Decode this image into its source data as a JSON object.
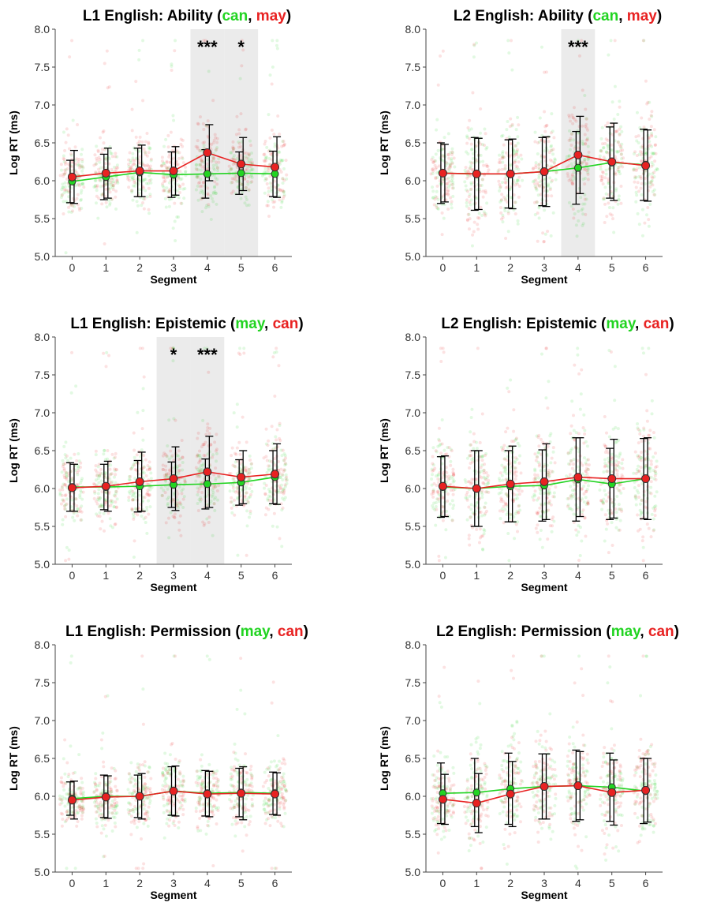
{
  "colors": {
    "green": "#22d422",
    "red": "#e82222",
    "shade": "#ebebeb"
  },
  "chart_data": [
    {
      "type": "line",
      "title_prefix": "L1 English: Ability (",
      "title_first": "can",
      "title_sep": ", ",
      "title_second": "may",
      "title_suffix": ")",
      "xlabel": "Segment",
      "ylabel": "Log RT (ms)",
      "ylim": [
        5.0,
        8.0
      ],
      "yticks": [
        "5.0",
        "5.5",
        "6.0",
        "6.5",
        "7.0",
        "7.5",
        "8.0"
      ],
      "categories": [
        "0",
        "1",
        "2",
        "3",
        "4",
        "5",
        "6"
      ],
      "highlight_segments": [
        4,
        5
      ],
      "significance": [
        {
          "segment": 4,
          "label": "***"
        },
        {
          "segment": 5,
          "label": "*"
        }
      ],
      "series": [
        {
          "name": "can",
          "color": "green",
          "values": [
            5.99,
            6.05,
            6.11,
            6.08,
            6.09,
            6.1,
            6.09
          ],
          "error": [
            0.28,
            0.3,
            0.32,
            0.3,
            0.32,
            0.28,
            0.3
          ]
        },
        {
          "name": "may",
          "color": "red",
          "values": [
            6.05,
            6.1,
            6.13,
            6.13,
            6.37,
            6.22,
            6.18
          ],
          "error": [
            0.35,
            0.33,
            0.34,
            0.32,
            0.37,
            0.35,
            0.4
          ]
        }
      ]
    },
    {
      "type": "line",
      "title_prefix": "L2 English: Ability (",
      "title_first": "can",
      "title_sep": ", ",
      "title_second": "may",
      "title_suffix": ")",
      "xlabel": "Segment",
      "ylabel": "Log RT (ms)",
      "ylim": [
        5.0,
        8.0
      ],
      "yticks": [
        "5.0",
        "5.5",
        "6.0",
        "6.5",
        "7.0",
        "7.5",
        "8.0"
      ],
      "categories": [
        "0",
        "1",
        "2",
        "3",
        "4",
        "5",
        "6"
      ],
      "highlight_segments": [
        4
      ],
      "significance": [
        {
          "segment": 4,
          "label": "***"
        }
      ],
      "series": [
        {
          "name": "can",
          "color": "green",
          "values": [
            6.1,
            6.09,
            6.09,
            6.12,
            6.17,
            6.24,
            6.21
          ],
          "error": [
            0.4,
            0.48,
            0.45,
            0.45,
            0.48,
            0.47,
            0.47
          ]
        },
        {
          "name": "may",
          "color": "red",
          "values": [
            6.1,
            6.09,
            6.09,
            6.12,
            6.34,
            6.25,
            6.2
          ],
          "error": [
            0.38,
            0.47,
            0.46,
            0.46,
            0.51,
            0.51,
            0.47
          ]
        }
      ]
    },
    {
      "type": "line",
      "title_prefix": "L1 English: Epistemic (",
      "title_first": "may",
      "title_sep": ", ",
      "title_second": "can",
      "title_suffix": ")",
      "xlabel": "Segment",
      "ylabel": "Log RT (ms)",
      "ylim": [
        5.0,
        8.0
      ],
      "yticks": [
        "5.0",
        "5.5",
        "6.0",
        "6.5",
        "7.0",
        "7.5",
        "8.0"
      ],
      "categories": [
        "0",
        "1",
        "2",
        "3",
        "4",
        "5",
        "6"
      ],
      "highlight_segments": [
        3,
        4
      ],
      "significance": [
        {
          "segment": 3,
          "label": "*"
        },
        {
          "segment": 4,
          "label": "***"
        }
      ],
      "series": [
        {
          "name": "may",
          "color": "green",
          "values": [
            6.02,
            6.02,
            6.03,
            6.05,
            6.06,
            6.08,
            6.15
          ],
          "error": [
            0.32,
            0.3,
            0.34,
            0.3,
            0.33,
            0.3,
            0.35
          ]
        },
        {
          "name": "can",
          "color": "red",
          "values": [
            6.01,
            6.03,
            6.09,
            6.13,
            6.22,
            6.15,
            6.19
          ],
          "error": [
            0.31,
            0.33,
            0.39,
            0.42,
            0.47,
            0.35,
            0.4
          ]
        }
      ]
    },
    {
      "type": "line",
      "title_prefix": "L2 English: Epistemic (",
      "title_first": "may",
      "title_sep": ", ",
      "title_second": "can",
      "title_suffix": ")",
      "xlabel": "Segment",
      "ylabel": "Log RT (ms)",
      "ylim": [
        5.0,
        8.0
      ],
      "yticks": [
        "5.0",
        "5.5",
        "6.0",
        "6.5",
        "7.0",
        "7.5",
        "8.0"
      ],
      "categories": [
        "0",
        "1",
        "2",
        "3",
        "4",
        "5",
        "6"
      ],
      "highlight_segments": [],
      "significance": [],
      "series": [
        {
          "name": "may",
          "color": "green",
          "values": [
            6.02,
            6.0,
            6.03,
            6.04,
            6.12,
            6.06,
            6.13
          ],
          "error": [
            0.4,
            0.5,
            0.47,
            0.47,
            0.55,
            0.47,
            0.53
          ]
        },
        {
          "name": "can",
          "color": "red",
          "values": [
            6.03,
            6.0,
            6.06,
            6.09,
            6.15,
            6.13,
            6.13
          ],
          "error": [
            0.4,
            0.5,
            0.5,
            0.5,
            0.52,
            0.52,
            0.54
          ]
        }
      ]
    },
    {
      "type": "line",
      "title_prefix": "L1 English: Permission (",
      "title_first": "may",
      "title_sep": ", ",
      "title_second": "can",
      "title_suffix": ")",
      "xlabel": "Segment",
      "ylabel": "Log RT (ms)",
      "ylim": [
        5.0,
        8.0
      ],
      "yticks": [
        "5.0",
        "5.5",
        "6.0",
        "6.5",
        "7.0",
        "7.5",
        "8.0"
      ],
      "categories": [
        "0",
        "1",
        "2",
        "3",
        "4",
        "5",
        "6"
      ],
      "highlight_segments": [],
      "significance": [],
      "series": [
        {
          "name": "may",
          "color": "green",
          "values": [
            5.97,
            6.0,
            6.0,
            6.07,
            6.04,
            6.05,
            6.04
          ],
          "error": [
            0.22,
            0.28,
            0.28,
            0.32,
            0.3,
            0.32,
            0.28
          ]
        },
        {
          "name": "can",
          "color": "red",
          "values": [
            5.95,
            5.99,
            6.0,
            6.07,
            6.03,
            6.04,
            6.03
          ],
          "error": [
            0.25,
            0.28,
            0.3,
            0.33,
            0.3,
            0.35,
            0.28
          ]
        }
      ]
    },
    {
      "type": "line",
      "title_prefix": "L2 English: Permission (",
      "title_first": "may",
      "title_sep": ", ",
      "title_second": "can",
      "title_suffix": ")",
      "xlabel": "Segment",
      "ylabel": "Log RT (ms)",
      "ylim": [
        5.0,
        8.0
      ],
      "yticks": [
        "5.0",
        "5.5",
        "6.0",
        "6.5",
        "7.0",
        "7.5",
        "8.0"
      ],
      "categories": [
        "0",
        "1",
        "2",
        "3",
        "4",
        "5",
        "6"
      ],
      "highlight_segments": [],
      "significance": [],
      "series": [
        {
          "name": "may",
          "color": "green",
          "values": [
            6.04,
            6.05,
            6.1,
            6.13,
            6.14,
            6.12,
            6.07
          ],
          "error": [
            0.4,
            0.45,
            0.47,
            0.43,
            0.47,
            0.45,
            0.43
          ]
        },
        {
          "name": "can",
          "color": "red",
          "values": [
            5.96,
            5.91,
            6.03,
            6.13,
            6.14,
            6.05,
            6.08
          ],
          "error": [
            0.33,
            0.39,
            0.43,
            0.43,
            0.45,
            0.43,
            0.42
          ]
        }
      ]
    }
  ]
}
